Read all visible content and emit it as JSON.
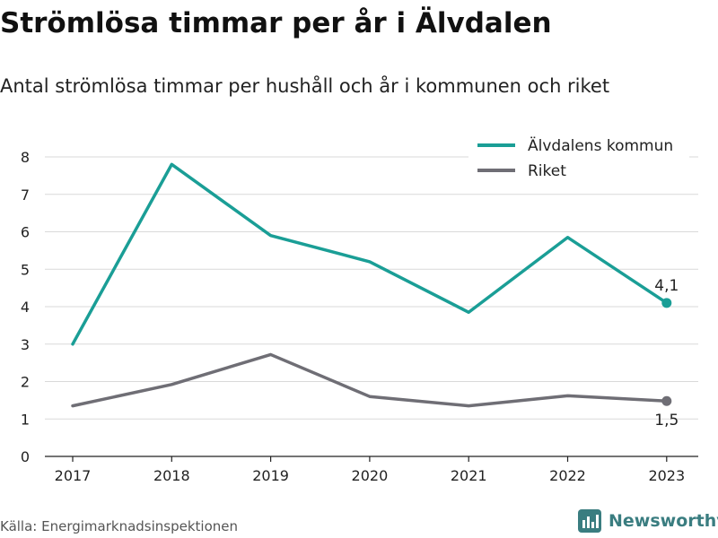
{
  "header": {
    "title": "Strömlösa timmar per år i Älvdalen",
    "subtitle": "Antal strömlösa timmar per hushåll och år i kommunen och riket"
  },
  "footer": {
    "source": "Källa: Energimarknadsinspektionen",
    "brand": "Newsworthy",
    "brand_icon": "bar-chart-logo-icon"
  },
  "colors": {
    "kommun": "#1a9e96",
    "riket": "#6f6e75",
    "grid": "#d9d9d9",
    "axis": "#222222",
    "brand": "#3a7d80"
  },
  "chart_data": {
    "type": "line",
    "x": [
      "2017",
      "2018",
      "2019",
      "2020",
      "2021",
      "2022",
      "2023"
    ],
    "series": [
      {
        "name": "Älvdalens kommun",
        "values": [
          3.0,
          7.8,
          5.9,
          5.2,
          3.85,
          5.85,
          4.1
        ],
        "end_label": "4,1"
      },
      {
        "name": "Riket",
        "values": [
          1.35,
          1.92,
          2.72,
          1.6,
          1.35,
          1.62,
          1.48
        ],
        "end_label": "1,5"
      }
    ],
    "y_ticks": [
      "0",
      "1",
      "2",
      "3",
      "4",
      "5",
      "6",
      "7",
      "8"
    ],
    "ylim": [
      0,
      8
    ],
    "grid": true,
    "legend_position": "top-right"
  }
}
